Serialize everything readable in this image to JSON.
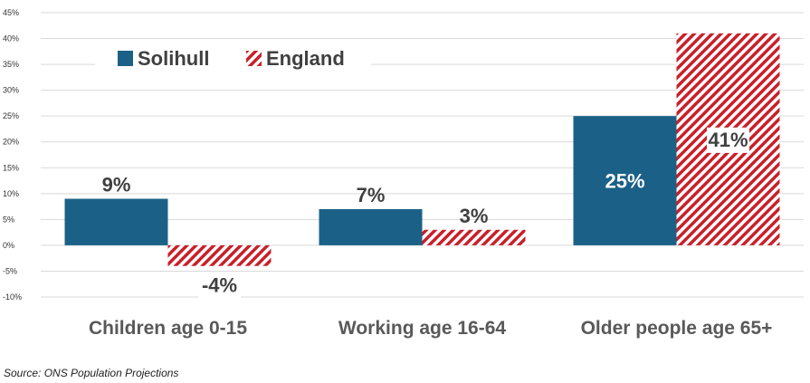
{
  "chart_data": {
    "type": "bar",
    "categories": [
      "Children age 0-15",
      "Working age 16-64",
      "Older people age 65+"
    ],
    "series": [
      {
        "name": "Solihull",
        "values": [
          9,
          7,
          25
        ],
        "labels": [
          "9%",
          "7%",
          "25%"
        ],
        "color": "#1b6187",
        "pattern": "solid"
      },
      {
        "name": "England",
        "values": [
          -4,
          3,
          41
        ],
        "labels": [
          "-4%",
          "3%",
          "41%"
        ],
        "color": "#c8202a",
        "pattern": "diagonal-stripes"
      }
    ],
    "y_ticks": [
      -10,
      -5,
      0,
      5,
      10,
      15,
      20,
      25,
      30,
      35,
      40,
      45
    ],
    "y_tick_labels": [
      "-10%",
      "-5%",
      "0%",
      "5%",
      "10%",
      "15%",
      "20%",
      "25%",
      "30%",
      "35%",
      "40%",
      "45%"
    ],
    "ylim": [
      -10,
      45
    ],
    "grid": true,
    "legend_position": "top-left",
    "title": "",
    "xlabel": "",
    "ylabel": ""
  },
  "footer": {
    "source": "Source: ONS Population Projections"
  }
}
